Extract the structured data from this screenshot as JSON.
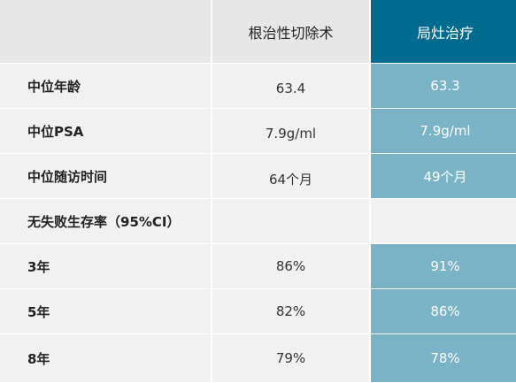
{
  "header": {
    "col_surgery": "根治性切除术",
    "col_ablation": "局灶治疗"
  },
  "rows": [
    {
      "label": "中位年龄",
      "surgery": "63.4",
      "ablation": "63.3"
    },
    {
      "label": "中位PSA",
      "surgery": "7.9g/ml",
      "ablation": "7.9g/ml"
    },
    {
      "label": "中位随访时间",
      "surgery": "64个月",
      "ablation": "49个月"
    },
    {
      "label": "无失败生存率（95%CI）",
      "surgery": "",
      "ablation": ""
    },
    {
      "label": "3年",
      "surgery": "86%",
      "ablation": "91%"
    },
    {
      "label": "5年",
      "surgery": "82%",
      "ablation": "86%"
    },
    {
      "label": "8年",
      "surgery": "79%",
      "ablation": "78%"
    }
  ],
  "colors": {
    "header_accent": "#006b8f",
    "value_accent": "#7bb3c6",
    "row_bg": "#f1f1f1"
  }
}
